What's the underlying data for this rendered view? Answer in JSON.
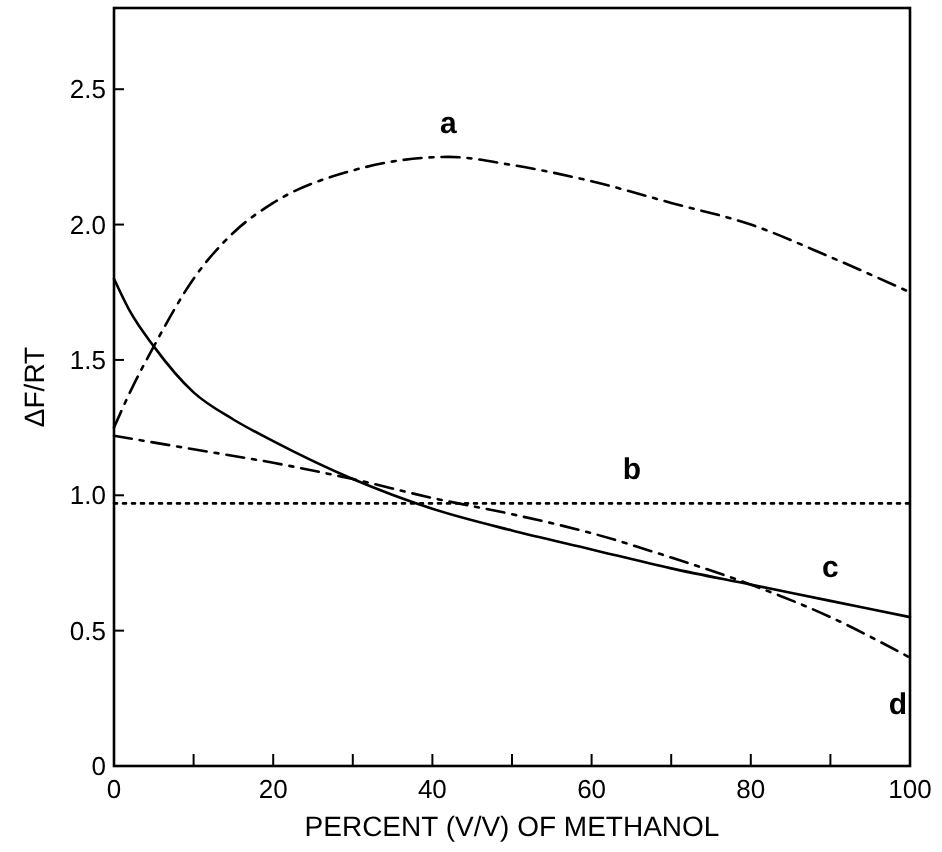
{
  "chart_data": {
    "type": "line",
    "xlabel": "PERCENT (V/V) OF METHANOL",
    "ylabel": "ΔF/RT",
    "xlim": [
      0,
      100
    ],
    "ylim": [
      0,
      2.8
    ],
    "xticks": [
      0,
      {
        "value": 10,
        "label": null
      },
      20,
      {
        "value": 30,
        "label": null
      },
      40,
      {
        "value": 50,
        "label": null
      },
      60,
      {
        "value": 70,
        "label": null
      },
      80,
      {
        "value": 90,
        "label": null
      },
      100
    ],
    "yticks": [
      0,
      0.5,
      {
        "value": 1,
        "label": "1.0"
      },
      1.5,
      {
        "value": 2,
        "label": "2.0"
      },
      2.5
    ],
    "series": [
      {
        "name": "a",
        "color": "#000000",
        "line_style": "dashed",
        "x": [
          0,
          2,
          5,
          10,
          15,
          20,
          30,
          42,
          50,
          60,
          70,
          80,
          90,
          100
        ],
        "values": [
          1.25,
          1.38,
          1.55,
          1.8,
          1.97,
          2.08,
          2.2,
          2.25,
          2.22,
          2.16,
          2.08,
          2.0,
          1.88,
          1.75
        ]
      },
      {
        "name": "b",
        "color": "#000000",
        "line_style": "dotted",
        "x": [
          0,
          100
        ],
        "values": [
          0.97,
          0.97
        ]
      },
      {
        "name": "c",
        "color": "#000000",
        "line_style": "solid",
        "x": [
          0,
          2,
          5,
          10,
          15,
          20,
          30,
          40,
          50,
          60,
          70,
          80,
          90,
          100
        ],
        "values": [
          1.8,
          1.68,
          1.55,
          1.38,
          1.28,
          1.2,
          1.06,
          0.95,
          0.87,
          0.8,
          0.73,
          0.67,
          0.61,
          0.55
        ]
      },
      {
        "name": "d",
        "color": "#000000",
        "line_style": "dashed",
        "x": [
          0,
          10,
          20,
          30,
          40,
          50,
          60,
          70,
          80,
          90,
          100
        ],
        "values": [
          1.22,
          1.17,
          1.12,
          1.06,
          0.99,
          0.93,
          0.86,
          0.77,
          0.67,
          0.55,
          0.4
        ]
      }
    ]
  }
}
